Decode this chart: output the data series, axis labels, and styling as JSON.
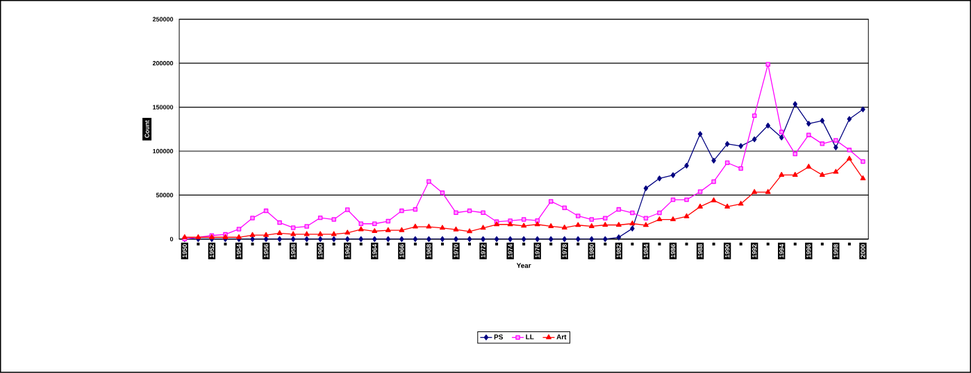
{
  "chart_data": {
    "type": "line",
    "xlabel": "Year",
    "ylabel": "Count",
    "x": [
      1950,
      1951,
      1952,
      1953,
      1954,
      1955,
      1956,
      1957,
      1958,
      1959,
      1960,
      1961,
      1962,
      1963,
      1964,
      1965,
      1966,
      1967,
      1968,
      1969,
      1970,
      1971,
      1972,
      1973,
      1974,
      1975,
      1976,
      1977,
      1978,
      1979,
      1980,
      1981,
      1982,
      1983,
      1984,
      1985,
      1986,
      1987,
      1988,
      1989,
      1990,
      1991,
      1992,
      1993,
      1994,
      1995,
      1996,
      1997,
      1998,
      1999,
      2000
    ],
    "xlim": [
      1949.6,
      2000.4
    ],
    "xticks": [
      1950,
      {
        "value": 1951,
        "label": null
      },
      1952,
      {
        "value": 1953,
        "label": null
      },
      1954,
      {
        "value": 1955,
        "label": null
      },
      1956,
      {
        "value": 1957,
        "label": null
      },
      1958,
      {
        "value": 1959,
        "label": null
      },
      1960,
      {
        "value": 1961,
        "label": null
      },
      1962,
      {
        "value": 1963,
        "label": null
      },
      1964,
      {
        "value": 1965,
        "label": null
      },
      1966,
      {
        "value": 1967,
        "label": null
      },
      1968,
      {
        "value": 1969,
        "label": null
      },
      1970,
      {
        "value": 1971,
        "label": null
      },
      1972,
      {
        "value": 1973,
        "label": null
      },
      1974,
      {
        "value": 1975,
        "label": null
      },
      1976,
      {
        "value": 1977,
        "label": null
      },
      1978,
      {
        "value": 1979,
        "label": null
      },
      1980,
      {
        "value": 1981,
        "label": null
      },
      1982,
      {
        "value": 1983,
        "label": null
      },
      1984,
      {
        "value": 1985,
        "label": null
      },
      1986,
      {
        "value": 1987,
        "label": null
      },
      1988,
      {
        "value": 1989,
        "label": null
      },
      1990,
      {
        "value": 1991,
        "label": null
      },
      1992,
      {
        "value": 1993,
        "label": null
      },
      1994,
      {
        "value": 1995,
        "label": null
      },
      1996,
      {
        "value": 1997,
        "label": null
      },
      1998,
      {
        "value": 1999,
        "label": null
      },
      2000
    ],
    "ylim": [
      0,
      250000
    ],
    "yticks": [
      0,
      50000,
      100000,
      150000,
      200000,
      250000
    ],
    "grid": "y",
    "legend": "bottom",
    "series": [
      {
        "name": "PS",
        "color": "#000080",
        "marker": "diamond",
        "values": [
          0,
          0,
          0,
          0,
          0,
          0,
          0,
          0,
          0,
          0,
          0,
          0,
          0,
          0,
          0,
          0,
          0,
          0,
          0,
          0,
          0,
          0,
          0,
          0,
          0,
          0,
          0,
          0,
          0,
          0,
          0,
          0,
          2000,
          12000,
          57700,
          69000,
          72700,
          83500,
          119500,
          89200,
          108100,
          105800,
          113400,
          129100,
          115500,
          153500,
          131200,
          134600,
          104200,
          136500,
          147500
        ]
      },
      {
        "name": "LL",
        "color": "#ff00ff",
        "marker": "square",
        "values": [
          0,
          null,
          4000,
          5300,
          11300,
          23900,
          32100,
          18700,
          12900,
          14400,
          24200,
          22300,
          33400,
          17400,
          17400,
          20300,
          32100,
          33700,
          65500,
          52600,
          30000,
          32100,
          30000,
          19700,
          20800,
          22300,
          21000,
          42900,
          35500,
          26300,
          22300,
          23700,
          33700,
          29800,
          23700,
          29800,
          44700,
          44700,
          53900,
          65300,
          86800,
          80300,
          140300,
          198700,
          121800,
          96800,
          118400,
          108400,
          112300,
          101300,
          88200
        ]
      },
      {
        "name": "Art",
        "color": "#ff0000",
        "marker": "triangle",
        "values": [
          2000,
          2000,
          2000,
          2000,
          2000,
          4500,
          4500,
          6600,
          5500,
          5500,
          5500,
          5500,
          7100,
          11000,
          8900,
          10000,
          10000,
          14000,
          14000,
          12600,
          10800,
          8700,
          12600,
          16600,
          16600,
          15000,
          16600,
          14500,
          12900,
          15800,
          14500,
          16000,
          16000,
          17600,
          15800,
          22300,
          22300,
          25800,
          36800,
          43900,
          36800,
          40000,
          53400,
          53400,
          72900,
          72900,
          82100,
          72900,
          76300,
          91300,
          68900
        ]
      }
    ]
  }
}
